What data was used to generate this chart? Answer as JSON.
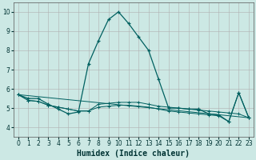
{
  "title": "",
  "xlabel": "Humidex (Indice chaleur)",
  "background_color": "#cce8e4",
  "grid_color": "#b0b0b0",
  "line_color": "#006060",
  "xlim": [
    -0.5,
    23.5
  ],
  "ylim": [
    3.5,
    10.5
  ],
  "xticks": [
    0,
    1,
    2,
    3,
    4,
    5,
    6,
    7,
    8,
    9,
    10,
    11,
    12,
    13,
    14,
    15,
    16,
    17,
    18,
    19,
    20,
    21,
    22,
    23
  ],
  "yticks": [
    4,
    5,
    6,
    7,
    8,
    9,
    10
  ],
  "curve1_x": [
    0,
    1,
    2,
    3,
    4,
    5,
    6,
    7,
    8,
    9,
    10,
    11,
    12,
    13,
    14,
    15,
    16,
    17,
    18,
    19,
    20,
    21,
    22,
    23
  ],
  "curve1_y": [
    5.7,
    5.5,
    5.5,
    5.2,
    4.95,
    4.7,
    4.8,
    7.3,
    8.5,
    9.6,
    10.0,
    9.4,
    8.7,
    8.0,
    6.5,
    5.0,
    5.0,
    4.95,
    4.95,
    4.7,
    4.65,
    4.3,
    5.8,
    4.5
  ],
  "curve2_x": [
    0,
    1,
    2,
    3,
    4,
    5,
    6,
    7,
    8,
    9,
    10,
    11,
    12,
    13,
    14,
    15,
    16,
    17,
    18,
    19,
    20,
    21,
    22,
    23
  ],
  "curve2_y": [
    5.7,
    5.4,
    5.35,
    5.15,
    5.05,
    4.95,
    4.85,
    4.85,
    5.2,
    5.25,
    5.3,
    5.3,
    5.3,
    5.2,
    5.1,
    5.05,
    5.0,
    4.95,
    4.9,
    4.85,
    4.8,
    4.75,
    4.7,
    4.5
  ],
  "curve3_x": [
    0,
    1,
    2,
    3,
    4,
    5,
    6,
    7,
    8,
    9,
    10,
    11,
    12,
    13,
    14,
    15,
    16,
    17,
    18,
    19,
    20,
    21,
    22,
    23
  ],
  "curve3_y": [
    5.7,
    5.4,
    5.35,
    5.15,
    5.05,
    4.95,
    4.85,
    4.85,
    5.05,
    5.1,
    5.15,
    5.15,
    5.1,
    5.05,
    4.95,
    4.85,
    4.8,
    4.75,
    4.7,
    4.65,
    4.6,
    4.3,
    5.8,
    4.5
  ],
  "curve4_x": [
    0,
    23
  ],
  "curve4_y": [
    5.7,
    4.5
  ],
  "tick_fontsize": 5.5,
  "xlabel_fontsize": 7.0
}
